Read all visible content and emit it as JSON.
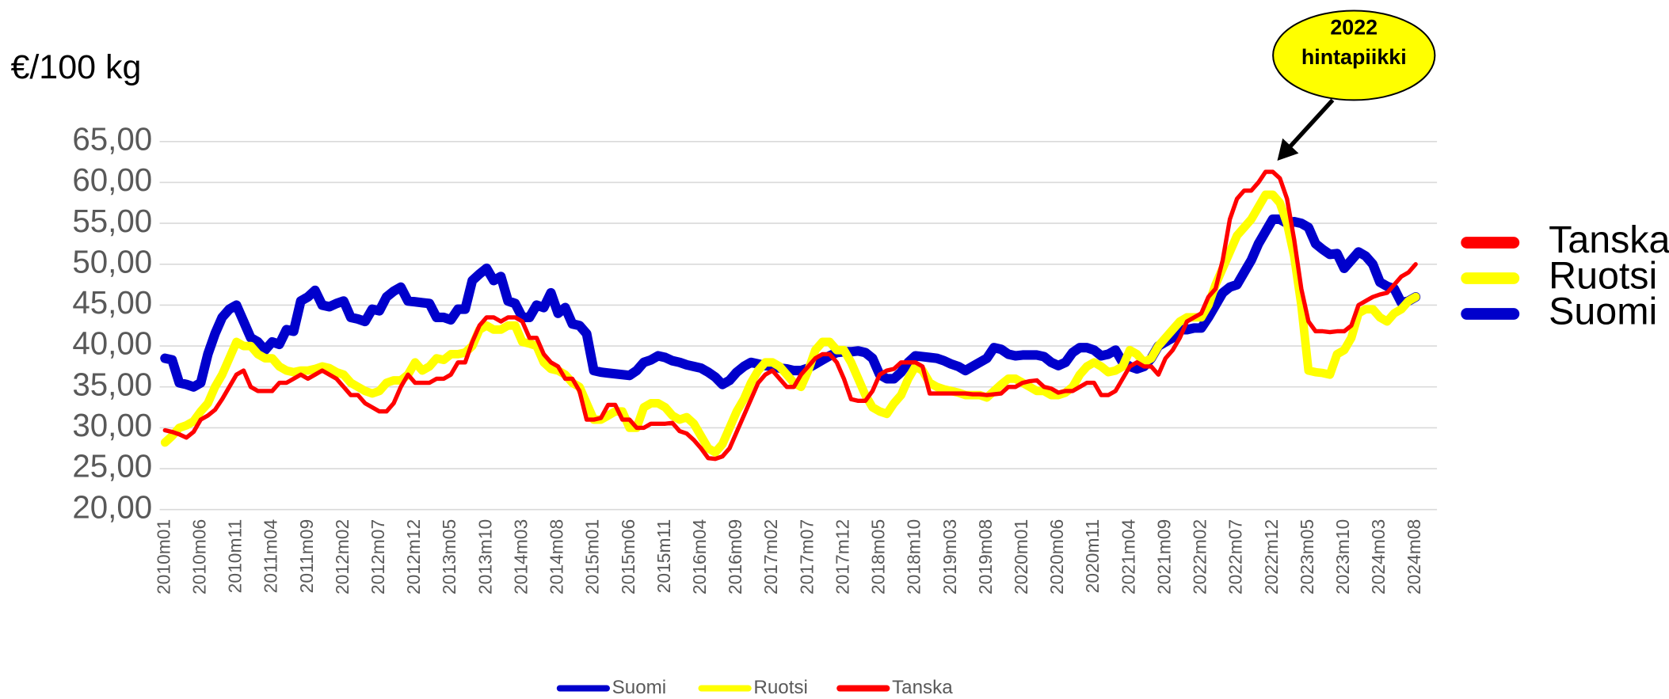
{
  "chart_data": {
    "type": "line",
    "y_axis_label": "€/100 kg",
    "annotation": [
      "2022",
      "hintapiikki"
    ],
    "categories": [
      "2010m01",
      null,
      null,
      null,
      null,
      "2010m06",
      null,
      null,
      null,
      null,
      "2010m11",
      null,
      null,
      null,
      null,
      "2011m04",
      null,
      null,
      null,
      null,
      "2011m09",
      null,
      null,
      null,
      null,
      "2012m02",
      null,
      null,
      null,
      null,
      "2012m07",
      null,
      null,
      null,
      null,
      "2012m12",
      null,
      null,
      null,
      null,
      "2013m05",
      null,
      null,
      null,
      null,
      "2013m10",
      null,
      null,
      null,
      null,
      "2014m03",
      null,
      null,
      null,
      null,
      "2014m08",
      null,
      null,
      null,
      null,
      "2015m01",
      null,
      null,
      null,
      null,
      "2015m06",
      null,
      null,
      null,
      null,
      "2015m11",
      null,
      null,
      null,
      null,
      "2016m04",
      null,
      null,
      null,
      null,
      "2016m09",
      null,
      null,
      null,
      null,
      "2017m02",
      null,
      null,
      null,
      null,
      "2017m07",
      null,
      null,
      null,
      null,
      "2017m12",
      null,
      null,
      null,
      null,
      "2018m05",
      null,
      null,
      null,
      null,
      "2018m10",
      null,
      null,
      null,
      null,
      "2019m03",
      null,
      null,
      null,
      null,
      "2019m08",
      null,
      null,
      null,
      null,
      "2020m01",
      null,
      null,
      null,
      null,
      "2020m06",
      null,
      null,
      null,
      null,
      "2020m11",
      null,
      null,
      null,
      null,
      "2021m04",
      null,
      null,
      null,
      null,
      "2021m09",
      null,
      null,
      null,
      null,
      "2022m02",
      null,
      null,
      null,
      null,
      "2022m07",
      null,
      null,
      null,
      null,
      "2022m12",
      null,
      null,
      null,
      null,
      "2023m05",
      null,
      null,
      null,
      null,
      "2023m10",
      null,
      null,
      null,
      null,
      "2024m03",
      null,
      null,
      null,
      null,
      "2024m08"
    ],
    "series": [
      {
        "name": "Suomi",
        "color": "#0000cc",
        "values": [
          38.5,
          38.3,
          35.5,
          35.3,
          35,
          35.5,
          39,
          41.5,
          43.5,
          44.5,
          45,
          43,
          41,
          40.5,
          39.5,
          40.5,
          40.2,
          42,
          41.8,
          45.5,
          46,
          46.8,
          45,
          44.8,
          45.2,
          45.5,
          43.5,
          43.3,
          43,
          44.5,
          44.3,
          46,
          46.7,
          47.2,
          45.5,
          45.4,
          45.3,
          45.2,
          43.5,
          43.5,
          43.2,
          44.5,
          44.5,
          48,
          48.8,
          49.5,
          48,
          48.5,
          45.5,
          45.2,
          43.5,
          43.5,
          45,
          44.7,
          46.5,
          44,
          44.7,
          42.7,
          42.5,
          41.5,
          37,
          36.8,
          36.7,
          36.6,
          36.5,
          36.4,
          37,
          38,
          38.3,
          38.8,
          38.6,
          38.2,
          38,
          37.7,
          37.5,
          37.3,
          36.8,
          36.2,
          35.3,
          35.8,
          36.8,
          37.5,
          38,
          37.8,
          37.6,
          37.5,
          37.3,
          37.2,
          37,
          37,
          37.3,
          37.8,
          38.3,
          38.8,
          39.2,
          39.3,
          39.3,
          39.4,
          39.2,
          38.5,
          36.5,
          36,
          36,
          36.8,
          38,
          38.8,
          38.7,
          38.6,
          38.5,
          38.2,
          37.8,
          37.5,
          37,
          37.5,
          38,
          38.5,
          39.8,
          39.6,
          39,
          38.8,
          38.9,
          38.9,
          38.9,
          38.7,
          38,
          37.6,
          38,
          39.2,
          39.8,
          39.8,
          39.5,
          38.8,
          39,
          39.5,
          38,
          37.5,
          37.2,
          37.5,
          38.5,
          40,
          40.5,
          41,
          42,
          42,
          42.2,
          42.2,
          43.5,
          45,
          46.5,
          47.2,
          47.5,
          49,
          50.5,
          52.5,
          54,
          55.5,
          55.5,
          55,
          55.2,
          55,
          54.5,
          52.5,
          51.8,
          51.2,
          51.3,
          49.5,
          50.5,
          51.5,
          51,
          50,
          47.8,
          47.3,
          47,
          45.3,
          45.5,
          46
        ],
        "width": 9
      },
      {
        "name": "Ruotsi",
        "color": "#ffff00",
        "values": [
          28.2,
          29,
          30,
          30.3,
          30.8,
          32,
          33,
          35,
          36.5,
          38.5,
          40.5,
          40,
          40,
          39,
          38.5,
          38.5,
          37.5,
          37,
          36.8,
          37,
          37,
          37.2,
          37.5,
          37.3,
          36.8,
          36.5,
          35.5,
          35,
          34.5,
          34.2,
          34.5,
          35.5,
          35.8,
          35.8,
          36.5,
          38,
          37,
          37.5,
          38.5,
          38.3,
          39,
          39,
          39.2,
          40,
          42,
          42.5,
          42,
          42,
          42.5,
          42.5,
          40.5,
          40.3,
          40,
          38,
          37.2,
          37,
          36.5,
          35.5,
          35,
          33,
          31,
          31,
          31.5,
          32,
          32,
          30,
          30,
          32.5,
          33,
          33,
          32.5,
          31.5,
          31,
          31.3,
          30.5,
          29,
          27.5,
          27,
          28,
          30,
          32,
          33.5,
          35.5,
          37,
          38,
          38,
          37.5,
          36.5,
          35.5,
          35,
          37,
          39.5,
          40.5,
          40.5,
          39.5,
          39.5,
          38,
          36,
          34,
          32.5,
          32,
          31.7,
          33,
          34,
          36,
          37.5,
          37,
          35.5,
          35,
          34.7,
          34.5,
          34.3,
          34,
          34,
          34,
          33.7,
          34.5,
          35.3,
          36,
          36,
          35.5,
          35,
          34.5,
          34.5,
          34,
          34,
          34.3,
          35,
          36.5,
          37.5,
          38,
          37.5,
          36.8,
          37,
          37.5,
          39.5,
          39,
          38,
          38.5,
          40,
          41,
          42,
          43,
          43.5,
          43.5,
          43.5,
          45,
          47.5,
          49.5,
          51.5,
          53.5,
          54.5,
          55.5,
          57,
          58.5,
          58.5,
          57.5,
          55,
          51,
          45,
          37,
          36.8,
          36.7,
          36.5,
          39,
          39.5,
          41,
          44,
          44.5,
          44.5,
          43.5,
          43,
          44,
          44.5,
          45.5,
          46
        ],
        "width": 8
      },
      {
        "name": "Tanska",
        "color": "#ff0000",
        "values": [
          29.7,
          29.5,
          29.2,
          28.8,
          29.5,
          31,
          31.5,
          32.2,
          33.5,
          35,
          36.5,
          37,
          35,
          34.5,
          34.5,
          34.5,
          35.5,
          35.5,
          36,
          36.5,
          36,
          36.5,
          37,
          36.5,
          36,
          35,
          34,
          34,
          33,
          32.5,
          32,
          32,
          33,
          35,
          36.5,
          35.5,
          35.5,
          35.5,
          36,
          36,
          36.5,
          38,
          38,
          40.5,
          42.5,
          43.5,
          43.5,
          43,
          43.5,
          43.5,
          43,
          41,
          41,
          39,
          38,
          37.5,
          36,
          36,
          34.5,
          31,
          31,
          31.2,
          32.8,
          32.8,
          31,
          31,
          30,
          30,
          30.5,
          30.5,
          30.5,
          30.6,
          29.6,
          29.3,
          28.5,
          27.5,
          26.3,
          26.2,
          26.5,
          27.5,
          29.5,
          31.5,
          33.5,
          35.5,
          36.5,
          37,
          36,
          35,
          35,
          36.5,
          37.5,
          38.5,
          39,
          39,
          38,
          36,
          33.5,
          33.3,
          33.3,
          34.5,
          36.5,
          37,
          37.2,
          38,
          38,
          38,
          37.5,
          34.2,
          34.2,
          34.2,
          34.2,
          34.2,
          34.2,
          34.1,
          34.1,
          34,
          34.1,
          34.2,
          35,
          35,
          35.5,
          35.7,
          35.8,
          35,
          34.8,
          34.3,
          34.5,
          34.5,
          35,
          35.5,
          35.5,
          34,
          34,
          34.5,
          36,
          37.5,
          38,
          37.5,
          37.5,
          36.5,
          38.5,
          39.5,
          41,
          43,
          43.5,
          44,
          46,
          47,
          50.5,
          55.5,
          58,
          59,
          59,
          60,
          61.3,
          61.3,
          60.5,
          58,
          53,
          47,
          43,
          41.8,
          41.8,
          41.7,
          41.8,
          41.8,
          42.5,
          45,
          45.5,
          46,
          46.3,
          46.5,
          47.5,
          48.5,
          49,
          50
        ],
        "width": 4
      }
    ],
    "ylim": [
      20,
      65
    ],
    "yticks": [
      {
        "value": 20,
        "label": "20,00"
      },
      {
        "value": 25,
        "label": "25,00"
      },
      {
        "value": 30,
        "label": "30,00"
      },
      {
        "value": 35,
        "label": "35,00"
      },
      {
        "value": 40,
        "label": "40,00"
      },
      {
        "value": 45,
        "label": "45,00"
      },
      {
        "value": 50,
        "label": "50,00"
      },
      {
        "value": 55,
        "label": "55,00"
      },
      {
        "value": 60,
        "label": "60,00"
      },
      {
        "value": 65,
        "label": "65,00"
      }
    ],
    "grid": true
  }
}
